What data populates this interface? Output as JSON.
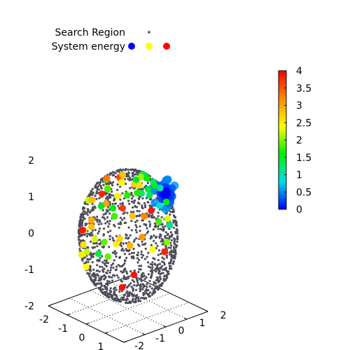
{
  "chart_data": {
    "type": "scatter",
    "title": "",
    "legend": {
      "placement": "top-left",
      "entries": [
        {
          "label": "Search Region",
          "marker": "small-dot",
          "colors": [
            "#4d4d5a"
          ]
        },
        {
          "label": "System energy",
          "marker": "dot",
          "colors": [
            "#0000ff",
            "#ffff00",
            "#ff0000"
          ]
        }
      ]
    },
    "axes": {
      "x": {
        "range": [
          -2,
          2
        ],
        "ticks": [
          "-2",
          "-1",
          "0",
          "1",
          "2"
        ]
      },
      "y": {
        "range": [
          -2,
          2
        ],
        "ticks": [
          "-2",
          "-1",
          "0",
          "1",
          "2"
        ]
      },
      "z": {
        "range": [
          -2,
          2
        ],
        "ticks": [
          "-2",
          "-1",
          "0",
          "1",
          "2"
        ]
      },
      "grid": true
    },
    "colorbar": {
      "range": [
        0,
        4
      ],
      "ticks": [
        "0",
        "0.5",
        "1",
        "1.5",
        "2",
        "2.5",
        "3",
        "3.5",
        "4"
      ],
      "palette": [
        "#0000ff",
        "#00ddee",
        "#00ee00",
        "#ffff00",
        "#ff8800",
        "#ff0000"
      ]
    },
    "search_region": {
      "shape": "sphere",
      "radius": 1.75,
      "color": "#4d4d5a",
      "approx_points": 1500
    },
    "cluster": {
      "center": [
        0.9,
        0.95,
        1.2
      ],
      "energy_range": [
        0.0,
        0.6
      ],
      "color": "#3344ff"
    },
    "energy_points": [
      {
        "x": 0.3,
        "y": 0.55,
        "z": 1.6,
        "e": 1.4
      },
      {
        "x": 0.5,
        "y": 0.75,
        "z": 1.45,
        "e": 1.2
      },
      {
        "x": 0.7,
        "y": 0.9,
        "z": 1.3,
        "e": 1.0
      },
      {
        "x": 0.1,
        "y": 0.6,
        "z": 1.6,
        "e": 1.3
      },
      {
        "x": 0.8,
        "y": 1.1,
        "z": 0.9,
        "e": 1.6
      },
      {
        "x": -0.9,
        "y": 0.4,
        "z": 1.3,
        "e": 3.6
      },
      {
        "x": -0.6,
        "y": -0.5,
        "z": 1.5,
        "e": 1.8
      },
      {
        "x": -0.4,
        "y": 0.1,
        "z": 1.55,
        "e": 2.8
      },
      {
        "x": -0.2,
        "y": 0.8,
        "z": 1.4,
        "e": 2.1
      },
      {
        "x": 0.2,
        "y": 1.1,
        "z": 1.2,
        "e": 1.5
      },
      {
        "x": -1.3,
        "y": 0.2,
        "z": 0.95,
        "e": 2.9
      },
      {
        "x": -1.5,
        "y": -0.5,
        "z": 0.7,
        "e": 2.3
      },
      {
        "x": -1.6,
        "y": 0.4,
        "z": 0.4,
        "e": 3.0
      },
      {
        "x": -1.4,
        "y": 1.0,
        "z": 0.2,
        "e": 3.7
      },
      {
        "x": -1.1,
        "y": -0.9,
        "z": 0.9,
        "e": 2.2
      },
      {
        "x": -0.8,
        "y": -1.0,
        "z": 1.0,
        "e": 2.9
      },
      {
        "x": -0.5,
        "y": -0.8,
        "z": 1.2,
        "e": 3.8
      },
      {
        "x": -0.4,
        "y": 0.9,
        "z": 1.1,
        "e": 2.6
      },
      {
        "x": 0.0,
        "y": -0.5,
        "z": 1.2,
        "e": 2.5
      },
      {
        "x": 0.1,
        "y": 0.2,
        "z": 1.4,
        "e": 2.7
      },
      {
        "x": 0.4,
        "y": -0.4,
        "z": 1.3,
        "e": 1.7
      },
      {
        "x": 0.6,
        "y": 0.1,
        "z": 1.3,
        "e": 1.2
      },
      {
        "x": 0.5,
        "y": 0.5,
        "z": 1.3,
        "e": 1.4
      },
      {
        "x": 0.8,
        "y": 0.3,
        "z": 1.25,
        "e": 1.3
      },
      {
        "x": -0.2,
        "y": -1.1,
        "z": 1.0,
        "e": 1.5
      },
      {
        "x": 0.2,
        "y": -0.9,
        "z": 1.0,
        "e": 1.6
      },
      {
        "x": 0.5,
        "y": -1.1,
        "z": 0.9,
        "e": 1.8
      },
      {
        "x": -0.5,
        "y": -1.3,
        "z": 0.4,
        "e": 2.8
      },
      {
        "x": -0.1,
        "y": -1.5,
        "z": 0.2,
        "e": 2.3
      },
      {
        "x": 0.3,
        "y": -1.4,
        "z": 0.2,
        "e": 1.9
      },
      {
        "x": 0.9,
        "y": -1.2,
        "z": 0.4,
        "e": 2.7
      },
      {
        "x": 0.9,
        "y": -0.6,
        "z": 0.9,
        "e": 2.8
      },
      {
        "x": 1.2,
        "y": -0.3,
        "z": 0.9,
        "e": 3.2
      },
      {
        "x": 1.0,
        "y": 0.2,
        "z": 0.9,
        "e": 3.9
      },
      {
        "x": 1.2,
        "y": 0.8,
        "z": 0.6,
        "e": 2.3
      },
      {
        "x": 1.4,
        "y": 0.2,
        "z": 0.7,
        "e": 1.8
      },
      {
        "x": 1.3,
        "y": -0.5,
        "z": 0.4,
        "e": 3.1
      },
      {
        "x": 1.5,
        "y": 0.5,
        "z": 0.1,
        "e": 2.0
      },
      {
        "x": 1.4,
        "y": -0.1,
        "z": 0.0,
        "e": 2.4
      },
      {
        "x": 1.6,
        "y": 0.3,
        "z": -0.1,
        "e": 3.8
      },
      {
        "x": 0.7,
        "y": -1.2,
        "z": 0.2,
        "e": 2.5
      },
      {
        "x": 1.1,
        "y": -0.9,
        "z": 0.2,
        "e": 2.9
      },
      {
        "x": -0.9,
        "y": -1.3,
        "z": 0.2,
        "e": 2.4
      },
      {
        "x": -0.7,
        "y": -1.5,
        "z": -0.1,
        "e": 2.6
      },
      {
        "x": -0.4,
        "y": -1.6,
        "z": -0.2,
        "e": 2.2
      },
      {
        "x": 0.2,
        "y": -1.6,
        "z": -0.1,
        "e": 1.4
      },
      {
        "x": 0.6,
        "y": -1.5,
        "z": -0.1,
        "e": 1.9
      },
      {
        "x": -1.4,
        "y": -0.9,
        "z": 0.0,
        "e": 3.9
      },
      {
        "x": -1.6,
        "y": -0.3,
        "z": 0.1,
        "e": 3.0
      },
      {
        "x": -0.8,
        "y": -1.5,
        "z": -0.4,
        "e": 2.5
      },
      {
        "x": -0.5,
        "y": -1.55,
        "z": -0.65,
        "e": 2.4
      },
      {
        "x": 1.2,
        "y": -0.8,
        "z": -0.6,
        "e": 3.9
      },
      {
        "x": 0.8,
        "y": -1.0,
        "z": -1.0,
        "e": 3.9
      },
      {
        "x": 0.3,
        "y": 0.1,
        "z": 1.6,
        "e": 1.5
      },
      {
        "x": 0.7,
        "y": -0.2,
        "z": 1.4,
        "e": 1.7
      },
      {
        "x": 1.1,
        "y": 0.5,
        "z": 1.0,
        "e": 0.9
      },
      {
        "x": 1.2,
        "y": 0.9,
        "z": 0.4,
        "e": 1.1
      },
      {
        "x": -0.9,
        "y": -0.2,
        "z": 1.4,
        "e": 3.3
      },
      {
        "x": -1.0,
        "y": 0.6,
        "z": 1.1,
        "e": 2.4
      },
      {
        "x": -0.2,
        "y": -0.8,
        "z": 1.4,
        "e": 1.8
      },
      {
        "x": 0.0,
        "y": 0.9,
        "z": 1.4,
        "e": 1.6
      }
    ]
  }
}
